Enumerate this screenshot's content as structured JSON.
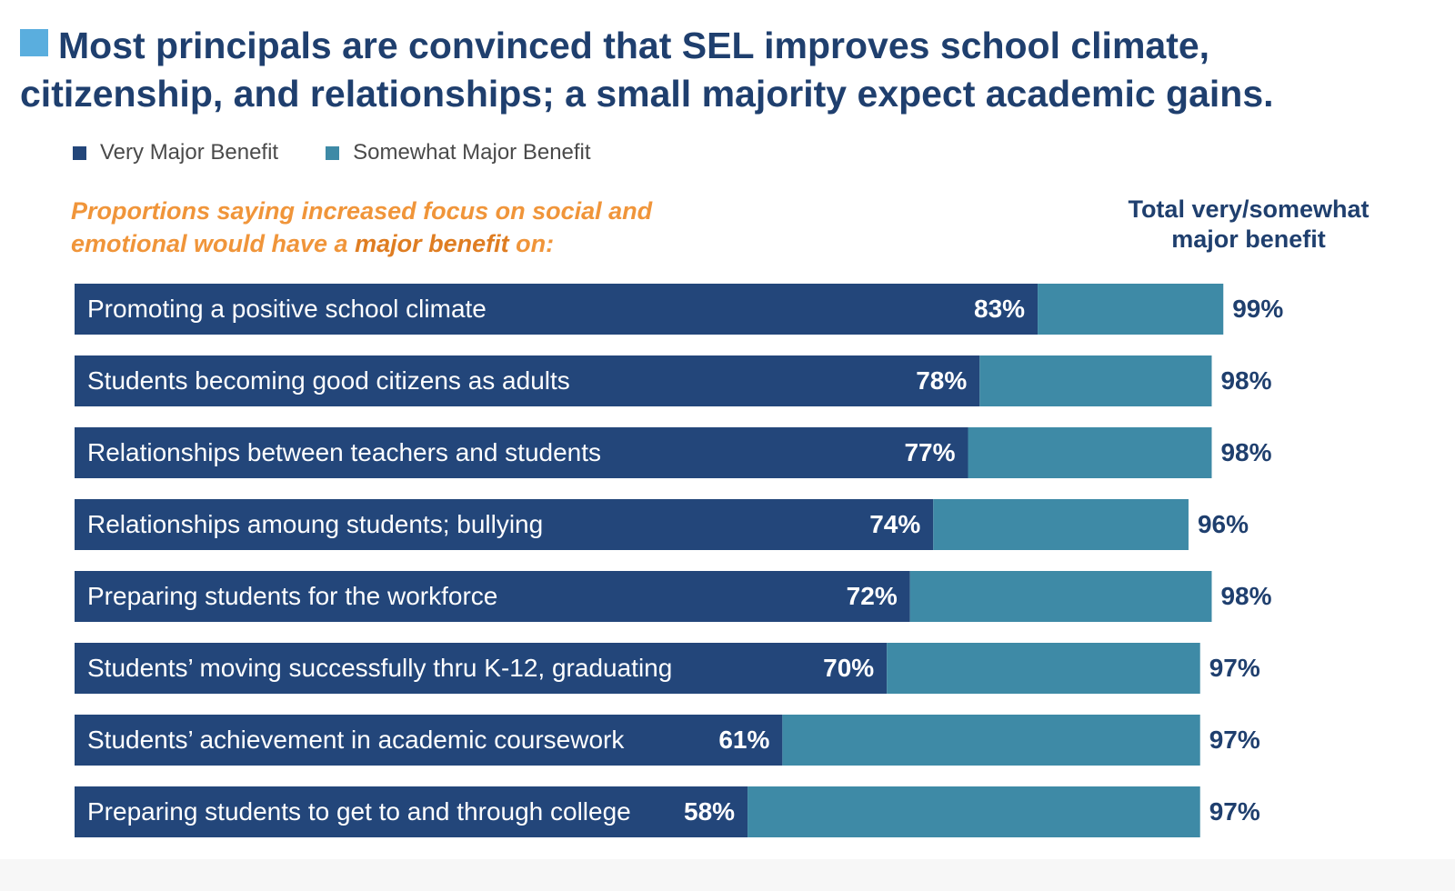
{
  "header": {
    "title": "Most principals are convinced that SEL improves school climate, citizenship, and relationships; a small majority expect academic gains."
  },
  "subtitle": {
    "part1": "Proportions saying increased focus on social and emotional would have a ",
    "emphasis": "major benefit",
    "part2": " on:"
  },
  "total_heading": {
    "line1": "Total very/somewhat",
    "line2": "major benefit"
  },
  "colors": {
    "very_major": "#23467a",
    "somewhat_major": "#3e8aa6",
    "title_accent": "#5aaede",
    "label_text": "#ffffff",
    "total_text": "#1f3f6e"
  },
  "chart_data": {
    "type": "bar",
    "orientation": "horizontal",
    "stacked": true,
    "legend_position": "top-left",
    "categories": [
      "Promoting a positive school climate",
      "Students becoming good citizens as adults",
      "Relationships between teachers and students",
      "Relationships amoung students; bullying",
      "Preparing students for the workforce",
      "Students’ moving successfully thru K-12, graduating",
      "Students’ achievement in academic coursework",
      "Preparing students to get to and through college"
    ],
    "series": [
      {
        "name": "Very Major Benefit",
        "values": [
          83,
          78,
          77,
          74,
          72,
          70,
          61,
          58
        ]
      },
      {
        "name": "Somewhat Major Benefit",
        "values": [
          16,
          20,
          21,
          22,
          26,
          27,
          36,
          39
        ]
      }
    ],
    "very_labels": [
      "83%",
      "78%",
      "77%",
      "74%",
      "72%",
      "70%",
      "61%",
      "58%"
    ],
    "totals": [
      99,
      98,
      98,
      96,
      98,
      97,
      97,
      97
    ],
    "total_labels": [
      "99%",
      "98%",
      "98%",
      "96%",
      "98%",
      "97%",
      "97%",
      "97%"
    ],
    "xlim": [
      0,
      100
    ]
  }
}
